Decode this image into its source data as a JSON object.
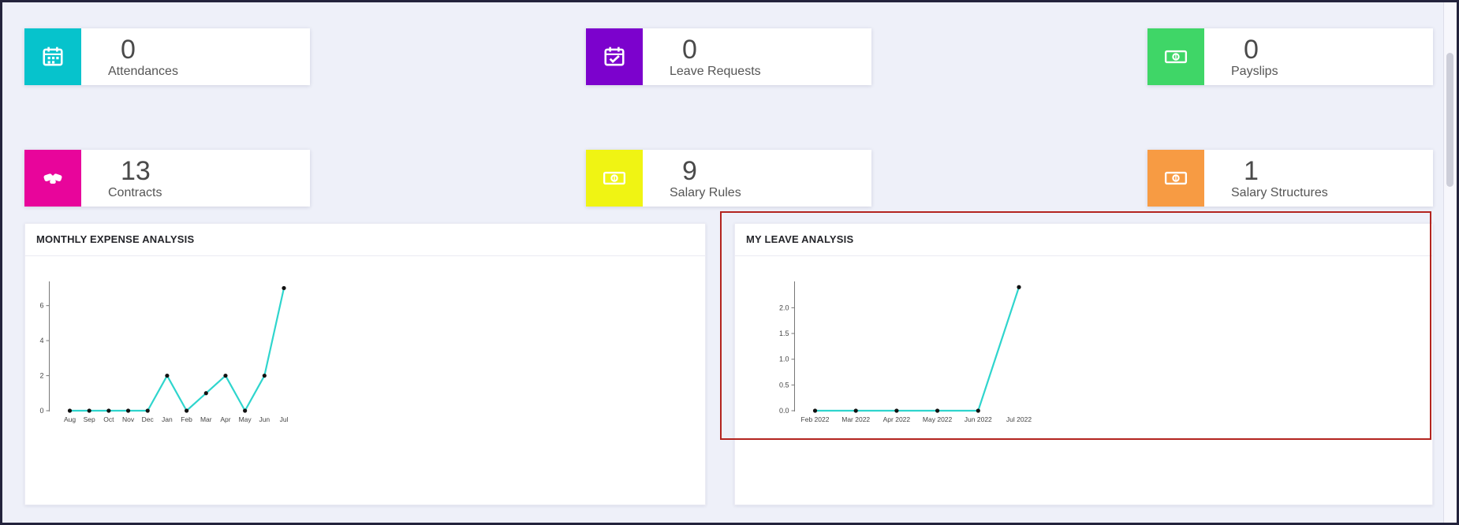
{
  "theme": {
    "background": "#eef0f9",
    "panel_background": "#ffffff",
    "frame_border": "#23233c",
    "annotation_red": "#b3241f",
    "chart_line": "#2fd5cd",
    "chart_marker": "#111111"
  },
  "cards": [
    {
      "value": "0",
      "label": "Attendances",
      "color": "#06c3cc",
      "icon": "calendar-icon"
    },
    {
      "value": "0",
      "label": "Leave Requests",
      "color": "#7c02cd",
      "icon": "calendar-check-icon"
    },
    {
      "value": "0",
      "label": "Payslips",
      "color": "#3fd667",
      "icon": "banknote-icon"
    },
    {
      "value": "13",
      "label": "Contracts",
      "color": "#e8059b",
      "icon": "handshake-icon"
    },
    {
      "value": "9",
      "label": "Salary Rules",
      "color": "#f0f413",
      "icon": "banknote-icon"
    },
    {
      "value": "1",
      "label": "Salary Structures",
      "color": "#f79b43",
      "icon": "banknote-icon"
    }
  ],
  "chart_data": [
    {
      "type": "line",
      "title": "MONTHLY EXPENSE ANALYSIS",
      "categories": [
        "Aug",
        "Sep",
        "Oct",
        "Nov",
        "Dec",
        "Jan",
        "Feb",
        "Mar",
        "Apr",
        "May",
        "Jun",
        "Jul"
      ],
      "values": [
        0,
        0,
        0,
        0,
        0,
        2,
        0,
        1,
        2,
        0,
        2,
        7
      ],
      "yticks": [
        0,
        2,
        4,
        6
      ],
      "ytick_labels": [
        "0",
        "2",
        "4",
        "6"
      ],
      "ylim": [
        0,
        7.2
      ],
      "xlabel": "",
      "ylabel": "",
      "grid": false,
      "legend": "none",
      "line_color": "#2fd5cd",
      "marker_color": "#111111"
    },
    {
      "type": "line",
      "title": "MY LEAVE ANALYSIS",
      "categories": [
        "Feb 2022",
        "Mar 2022",
        "Apr 2022",
        "May 2022",
        "Jun 2022",
        "Jul 2022"
      ],
      "values": [
        0,
        0,
        0,
        0,
        0,
        2.4
      ],
      "yticks": [
        0,
        0.5,
        1.0,
        1.5,
        2.0
      ],
      "ytick_labels": [
        "0.0",
        "0.5",
        "1.0",
        "1.5",
        "2.0"
      ],
      "ylim": [
        0,
        2.45
      ],
      "xlabel": "",
      "ylabel": "",
      "grid": false,
      "legend": "none",
      "line_color": "#2fd5cd",
      "marker_color": "#111111"
    }
  ]
}
